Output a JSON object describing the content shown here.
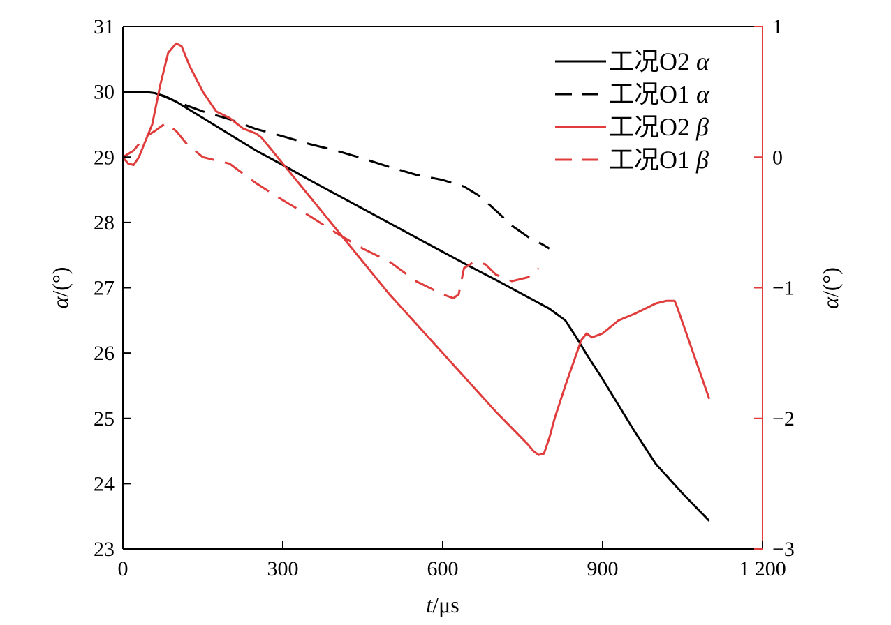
{
  "chart_data": {
    "type": "line",
    "title": "",
    "xlabel": {
      "var": "t",
      "unit": "/μs"
    },
    "ylabel_left": {
      "var": "α",
      "unit": "/(°)"
    },
    "ylabel_right": {
      "var": "α",
      "unit": "/(°)"
    },
    "xlim": [
      0,
      1200
    ],
    "ylim_left": [
      23,
      31
    ],
    "ylim_right": [
      -3,
      1
    ],
    "x_ticks": [
      0,
      300,
      600,
      900,
      1200
    ],
    "x_tick_labels": [
      "0",
      "300",
      "600",
      "900",
      "1 200"
    ],
    "y_left_ticks": [
      23,
      24,
      25,
      26,
      27,
      28,
      29,
      30,
      31
    ],
    "y_left_tick_labels": [
      "23",
      "24",
      "25",
      "26",
      "27",
      "28",
      "29",
      "30",
      "31"
    ],
    "y_right_ticks": [
      -3,
      -2,
      -1,
      0,
      1
    ],
    "y_right_tick_labels": [
      "−3",
      "−2",
      "−1",
      "0",
      "1"
    ],
    "grid": false,
    "legend_position": "top-right",
    "colors": {
      "black": "#000000",
      "red": "#e03c3c"
    },
    "series": [
      {
        "name": "工况O2 α",
        "legend_text": "工况O2 ",
        "legend_symbol": "α",
        "axis": "left",
        "color": "#000000",
        "dash": false,
        "x": [
          0,
          40,
          60,
          80,
          100,
          150,
          200,
          250,
          300,
          350,
          400,
          450,
          500,
          550,
          600,
          650,
          700,
          750,
          800,
          830,
          850,
          870,
          900,
          930,
          960,
          1000,
          1050,
          1100
        ],
        "y": [
          30.0,
          30.0,
          29.98,
          29.92,
          29.85,
          29.6,
          29.35,
          29.1,
          28.88,
          28.65,
          28.43,
          28.21,
          27.99,
          27.77,
          27.55,
          27.33,
          27.12,
          26.9,
          26.68,
          26.5,
          26.25,
          25.98,
          25.6,
          25.2,
          24.8,
          24.3,
          23.85,
          23.43
        ]
      },
      {
        "name": "工况O1 α",
        "legend_text": "工况O1 ",
        "legend_symbol": "α",
        "axis": "left",
        "color": "#000000",
        "dash": true,
        "x": [
          0,
          40,
          60,
          80,
          100,
          150,
          200,
          250,
          300,
          350,
          400,
          450,
          500,
          550,
          600,
          640,
          670,
          700,
          730,
          760,
          790,
          800
        ],
        "y": [
          30.0,
          30.0,
          29.98,
          29.93,
          29.85,
          29.7,
          29.58,
          29.43,
          29.32,
          29.2,
          29.1,
          28.98,
          28.85,
          28.73,
          28.65,
          28.55,
          28.4,
          28.18,
          27.95,
          27.78,
          27.65,
          27.6
        ]
      },
      {
        "name": "工况O2 β",
        "legend_text": "工况O2 ",
        "legend_symbol": "β",
        "axis": "right",
        "color": "#e03c3c",
        "dash": false,
        "x": [
          0,
          10,
          20,
          30,
          40,
          55,
          70,
          85,
          100,
          110,
          125,
          150,
          175,
          200,
          225,
          250,
          260,
          300,
          400,
          500,
          600,
          700,
          760,
          770,
          780,
          790,
          800,
          810,
          830,
          860,
          870,
          880,
          900,
          930,
          960,
          1000,
          1020,
          1035,
          1040,
          1100
        ],
        "y": [
          0.0,
          -0.05,
          -0.06,
          0.0,
          0.1,
          0.25,
          0.55,
          0.8,
          0.87,
          0.85,
          0.7,
          0.5,
          0.35,
          0.3,
          0.22,
          0.18,
          0.15,
          -0.05,
          -0.55,
          -1.05,
          -1.5,
          -1.95,
          -2.2,
          -2.25,
          -2.28,
          -2.27,
          -2.15,
          -2.0,
          -1.75,
          -1.4,
          -1.35,
          -1.38,
          -1.35,
          -1.25,
          -1.2,
          -1.12,
          -1.1,
          -1.1,
          -1.15,
          -1.85
        ]
      },
      {
        "name": "工况O1 β",
        "legend_text": "工况O1 ",
        "legend_symbol": "β",
        "axis": "right",
        "color": "#e03c3c",
        "dash": true,
        "x": [
          0,
          20,
          40,
          60,
          80,
          100,
          120,
          150,
          180,
          200,
          250,
          300,
          350,
          400,
          450,
          500,
          550,
          600,
          620,
          630,
          640,
          660,
          680,
          700,
          730,
          760,
          780
        ],
        "y": [
          0.0,
          0.05,
          0.15,
          0.2,
          0.26,
          0.2,
          0.1,
          0.0,
          -0.03,
          -0.05,
          -0.2,
          -0.33,
          -0.45,
          -0.58,
          -0.7,
          -0.8,
          -0.95,
          -1.05,
          -1.08,
          -1.05,
          -0.85,
          -0.8,
          -0.82,
          -0.9,
          -0.95,
          -0.92,
          -0.85
        ]
      }
    ]
  }
}
